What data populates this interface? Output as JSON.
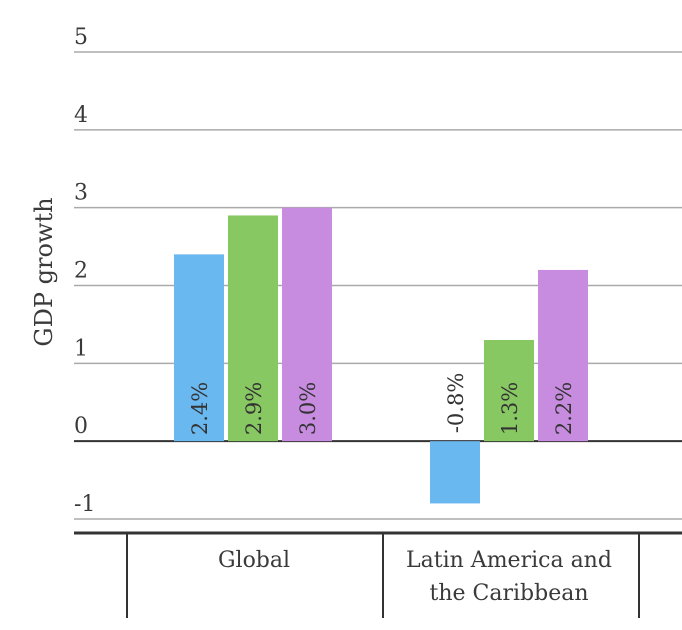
{
  "chart_data": {
    "type": "bar",
    "ylabel": "GDP growth",
    "ylim": [
      -1,
      5
    ],
    "yticks": [
      5,
      4,
      3,
      2,
      1,
      0,
      -1
    ],
    "grid": true,
    "categories": [
      {
        "name": "Global",
        "lines": [
          "Global"
        ]
      },
      {
        "name": "Latin America and the Caribbean",
        "lines": [
          "Latin America and",
          "the Caribbean"
        ]
      }
    ],
    "series": [
      {
        "color": "#6ab8f0",
        "values": [
          2.4,
          -0.8
        ],
        "labels": [
          "2.4%",
          "-0.8%"
        ]
      },
      {
        "color": "#88c862",
        "values": [
          2.9,
          1.3
        ],
        "labels": [
          "2.9%",
          "1.3%"
        ]
      },
      {
        "color": "#c78be0",
        "values": [
          3.0,
          2.2
        ],
        "labels": [
          "3.0%",
          "2.2%"
        ]
      }
    ]
  }
}
